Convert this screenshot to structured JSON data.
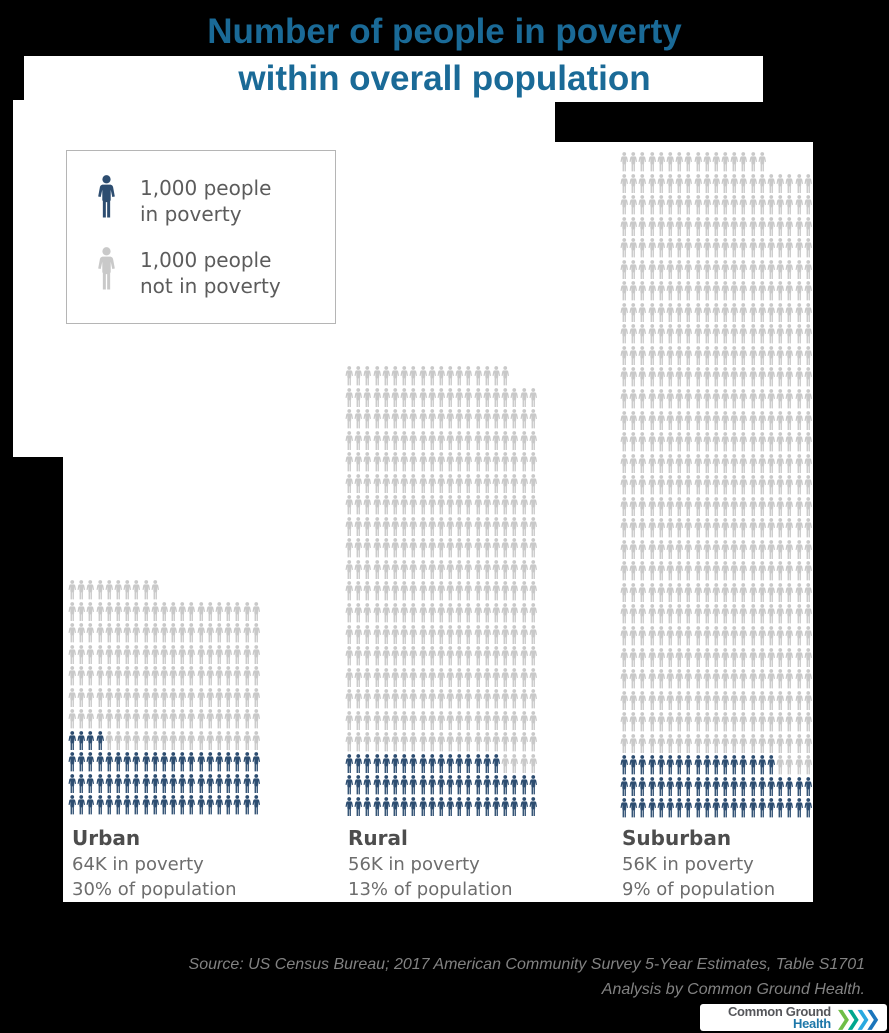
{
  "title": {
    "line1": "Number of people in poverty",
    "line2": "within overall population"
  },
  "legend": {
    "items": [
      {
        "icon": "person-icon-navy",
        "line1": "1,000 people",
        "line2": "in poverty"
      },
      {
        "icon": "person-icon-gray",
        "line1": "1,000 people",
        "line2": "not in poverty"
      }
    ]
  },
  "chart_data": {
    "type": "pictogram",
    "unit_per_icon": 1000,
    "icons_per_row": 21,
    "legend_position": "top-left",
    "groups": [
      {
        "name": "Urban",
        "poverty_label": "64K in poverty",
        "percent_label": "30% of population",
        "poverty_thousands": 64,
        "percent_of_population": 30,
        "top_partial_gray": 10,
        "full_gray_rows": 6,
        "transition_navy": 4,
        "transition_gray": 17,
        "full_navy_rows": 3
      },
      {
        "name": "Rural",
        "poverty_label": "56K in poverty",
        "percent_label": "13% of population",
        "poverty_thousands": 56,
        "percent_of_population": 13,
        "top_partial_gray": 18,
        "full_gray_rows": 17,
        "transition_navy": 17,
        "transition_gray": 4,
        "full_navy_rows": 2
      },
      {
        "name": "Suburban",
        "poverty_label": "56K in poverty",
        "percent_label": "9% of population",
        "poverty_thousands": 56,
        "percent_of_population": 9,
        "top_partial_gray": 16,
        "full_gray_rows": 27,
        "transition_navy": 17,
        "transition_gray": 4,
        "full_navy_rows": 2
      }
    ]
  },
  "colors": {
    "title_blue": "#1a6a97",
    "icon_navy": "#2d4d70",
    "icon_gray": "#c9c9c9",
    "logo_gray": "#55565a",
    "logo_health_blue": "#1d77a9"
  },
  "source": {
    "line1": "Source: US Census Bureau; 2017 American Community Survey 5-Year Estimates, Table S1701",
    "line2": "Analysis by Common Ground Health."
  },
  "logo": {
    "line1": "Common Ground",
    "line2": "Health",
    "chevron_glyph": "❯",
    "chevron_colors": [
      "#6fbe47",
      "#00a78e",
      "#2aa9e0",
      "#1b75bc"
    ]
  }
}
